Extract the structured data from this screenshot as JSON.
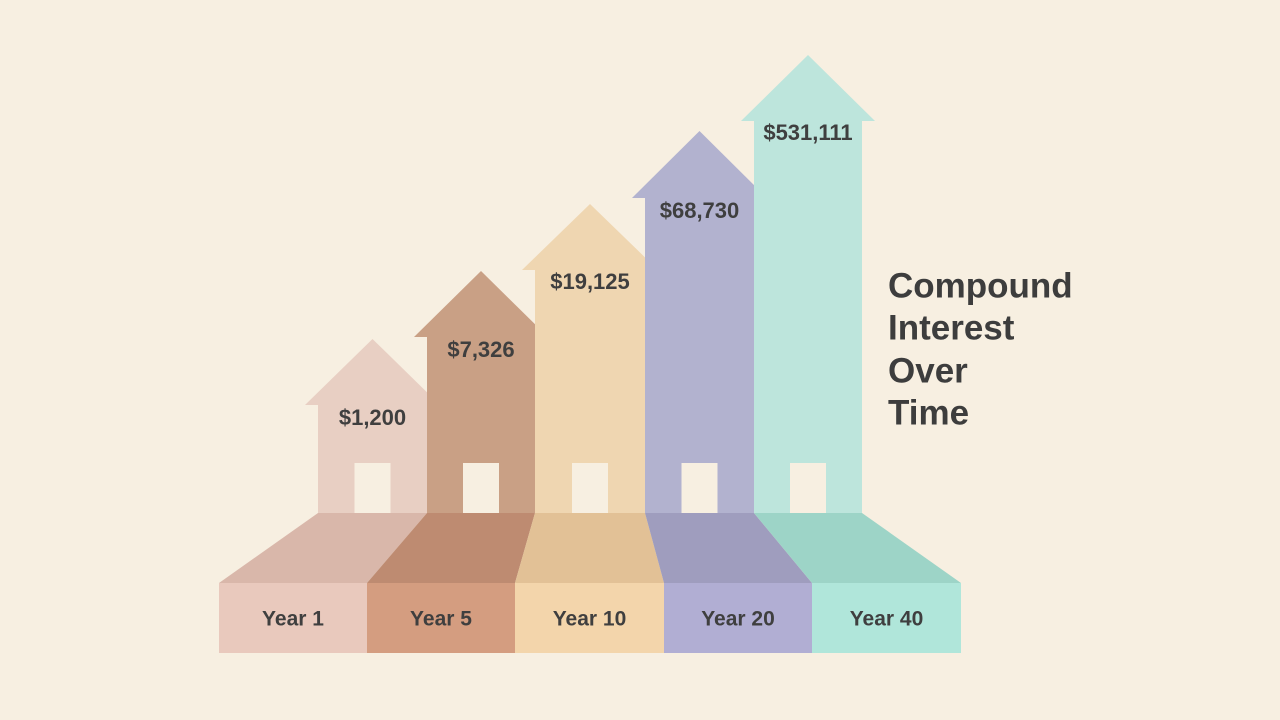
{
  "title_lines": [
    "Compound",
    "Interest",
    "Over",
    "Time"
  ],
  "steps": [
    {
      "label": "Year 1",
      "value": "$1,200"
    },
    {
      "label": "Year 5",
      "value": "$7,326"
    },
    {
      "label": "Year 10",
      "value": "$19,125"
    },
    {
      "label": "Year 20",
      "value": "$68,730"
    },
    {
      "label": "Year 40",
      "value": "$531,111"
    }
  ]
}
